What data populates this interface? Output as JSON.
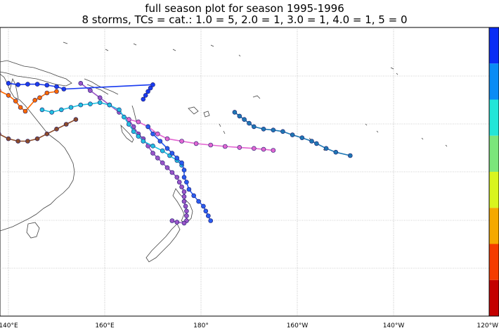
{
  "title": "full season plot for season 1995-1996",
  "subtitle": "8 storms, TCs = cat.: 1.0 = 5, 2.0 = 1, 3.0 = 1, 4.0 = 1, 5 = 0",
  "longitude_labels": [
    "140°E",
    "160°E",
    "180°",
    "160°W",
    "140°W",
    "120°W"
  ],
  "colorbar_colors": [
    "#0a2cf5",
    "#0a8cf5",
    "#22e6d8",
    "#7be67b",
    "#d9f51e",
    "#f5a900",
    "#f53c00",
    "#c40000"
  ],
  "track_colors": {
    "cat1": "#9a55c8",
    "cat2": "#e266d2",
    "cat3": "#1f77b4",
    "cat4": "#2a5cf0",
    "extra1": "#ff6a00",
    "extra2": "#2ca02c",
    "extra3": "#8c4b2a",
    "extra4": "#b8b000"
  },
  "chart_data": {
    "type": "scatter",
    "season": "1995-1996",
    "storm_count": 8,
    "categories_count": {
      "1.0": 5,
      "2.0": 1,
      "3.0": 1,
      "4.0": 1,
      "5": 0
    },
    "lon_range_east": [
      138,
      220
    ],
    "lat_range": [
      -32,
      -7
    ],
    "storms": [
      {
        "color": "#9a55c8",
        "points": [
          [
            155,
            -11.5
          ],
          [
            157,
            -13
          ],
          [
            159,
            -14.5
          ],
          [
            161,
            -16
          ],
          [
            163,
            -17.5
          ],
          [
            165,
            -19
          ],
          [
            166,
            -20.5
          ],
          [
            167,
            -22
          ],
          [
            168,
            -23
          ],
          [
            169,
            -24.5
          ],
          [
            170,
            -26
          ],
          [
            171,
            -27
          ],
          [
            172,
            -28
          ],
          [
            173,
            -29
          ],
          [
            174,
            -30
          ],
          [
            175,
            -31
          ],
          [
            175.5,
            -32
          ],
          [
            176,
            -33
          ],
          [
            176.5,
            -34
          ],
          [
            176.5,
            -35
          ],
          [
            176.5,
            -36
          ],
          [
            176.8,
            -37
          ],
          [
            177,
            -38
          ],
          [
            177,
            -39
          ],
          [
            177,
            -40
          ],
          [
            176.5,
            -40.5
          ],
          [
            175,
            -40.3
          ],
          [
            174,
            -40
          ]
        ]
      },
      {
        "color": "#e266d2",
        "points": [
          [
            165,
            -19
          ],
          [
            167,
            -19.5
          ],
          [
            169,
            -20.5
          ],
          [
            171,
            -22
          ],
          [
            173,
            -23
          ],
          [
            176,
            -23.5
          ],
          [
            179,
            -24
          ],
          [
            182,
            -24.3
          ],
          [
            185,
            -24.6
          ],
          [
            188,
            -24.8
          ],
          [
            191,
            -25
          ],
          [
            193,
            -25.2
          ],
          [
            195,
            -25.4
          ]
        ]
      },
      {
        "color": "#1f77b4",
        "points": [
          [
            187,
            -17.5
          ],
          [
            188,
            -18.3
          ],
          [
            189,
            -19
          ],
          [
            190,
            -19.8
          ],
          [
            191,
            -20.5
          ],
          [
            193,
            -21
          ],
          [
            195,
            -21.2
          ],
          [
            197,
            -21.5
          ],
          [
            199,
            -22.2
          ],
          [
            201,
            -22.8
          ],
          [
            203,
            -23.5
          ],
          [
            204,
            -24
          ],
          [
            206,
            -25
          ],
          [
            208,
            -25.8
          ],
          [
            211,
            -26.5
          ]
        ]
      },
      {
        "color": "#22c0e0",
        "points": [
          [
            147,
            -17
          ],
          [
            149,
            -17.5
          ],
          [
            151,
            -17
          ],
          [
            153,
            -16.5
          ],
          [
            155,
            -16
          ],
          [
            157,
            -15.8
          ],
          [
            159,
            -15.5
          ],
          [
            161,
            -16
          ],
          [
            163,
            -17
          ],
          [
            164,
            -18.5
          ],
          [
            165,
            -20
          ],
          [
            166,
            -21.5
          ],
          [
            167,
            -22.5
          ],
          [
            168,
            -23.5
          ],
          [
            170,
            -24.5
          ],
          [
            172,
            -25.5
          ],
          [
            173.5,
            -26.5
          ],
          [
            175,
            -27.5
          ],
          [
            176,
            -28.5
          ]
        ]
      },
      {
        "color": "#2a5cf0",
        "points": [
          [
            169,
            -20.5
          ],
          [
            170,
            -22
          ],
          [
            171.5,
            -23.5
          ],
          [
            173,
            -25
          ],
          [
            174,
            -26
          ],
          [
            175,
            -27
          ],
          [
            176,
            -28
          ],
          [
            176.5,
            -29.5
          ],
          [
            176.5,
            -31
          ],
          [
            177,
            -32
          ],
          [
            177.5,
            -33.5
          ],
          [
            178.5,
            -34.8
          ],
          [
            179.5,
            -36
          ],
          [
            180.5,
            -37
          ],
          [
            181,
            -38
          ],
          [
            181.5,
            -39
          ],
          [
            182,
            -40
          ]
        ]
      },
      {
        "color": "#1a3cf0",
        "points": [
          [
            140,
            -11.5
          ],
          [
            142,
            -11.8
          ],
          [
            144,
            -11.7
          ],
          [
            146,
            -11.7
          ],
          [
            148,
            -11.9
          ],
          [
            150,
            -12.2
          ],
          [
            151.5,
            -12.7
          ],
          [
            170,
            -11.8
          ],
          [
            169.5,
            -12.5
          ],
          [
            169,
            -13.2
          ],
          [
            168.5,
            -14
          ],
          [
            168,
            -14.8
          ]
        ]
      },
      {
        "color": "#ff6a00",
        "points": [
          [
            138,
            -13
          ],
          [
            140,
            -14
          ],
          [
            141.5,
            -15.2
          ],
          [
            142.5,
            -16.5
          ],
          [
            143.5,
            -17.3
          ],
          [
            145.5,
            -15
          ],
          [
            146.5,
            -14.5
          ],
          [
            148,
            -13.5
          ],
          [
            150,
            -13.2
          ]
        ]
      },
      {
        "color": "#8c4b2a",
        "points": [
          [
            138,
            -22
          ],
          [
            140,
            -23
          ],
          [
            142,
            -23.5
          ],
          [
            144,
            -23.5
          ],
          [
            146,
            -23
          ],
          [
            148,
            -22
          ],
          [
            150,
            -21
          ],
          [
            152,
            -20
          ],
          [
            154,
            -19
          ]
        ]
      }
    ]
  }
}
